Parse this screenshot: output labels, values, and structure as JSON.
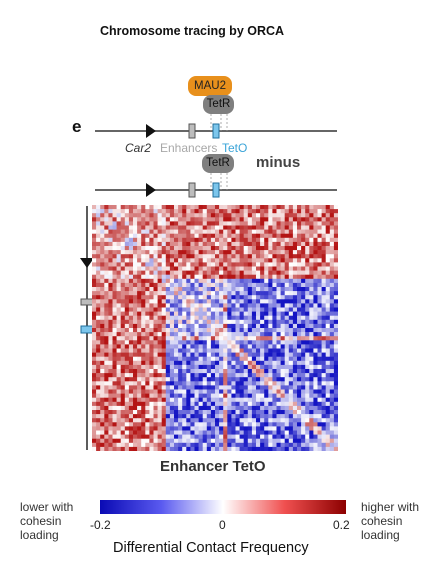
{
  "figure_title": "Chromosome tracing by ORCA",
  "panel_letter": "e",
  "proteins": {
    "mau2": "MAU2",
    "tetr_top": "TetR",
    "tetr_bottom": "TetR"
  },
  "track_labels": {
    "gene": "Car2",
    "enhancers": "Enhancers",
    "teto": "TetO"
  },
  "condition_label": "minus",
  "heatmap_caption": "Enhancer TetO",
  "colorbar": {
    "low_label": [
      "lower with",
      "cohesin",
      "loading"
    ],
    "high_label": [
      "higher with",
      "cohesin",
      "loading"
    ],
    "tick_min": "-0.2",
    "tick_mid": "0",
    "tick_max": "0.2",
    "title": "Differential Contact Frequency"
  },
  "colors": {
    "mau2": "#e8901c",
    "tetr": "#7f7f7f",
    "enhancer": "#a8a8a8",
    "teto": "#3aa4d8",
    "negative": "#1a1aa8",
    "positive": "#c81010"
  }
}
